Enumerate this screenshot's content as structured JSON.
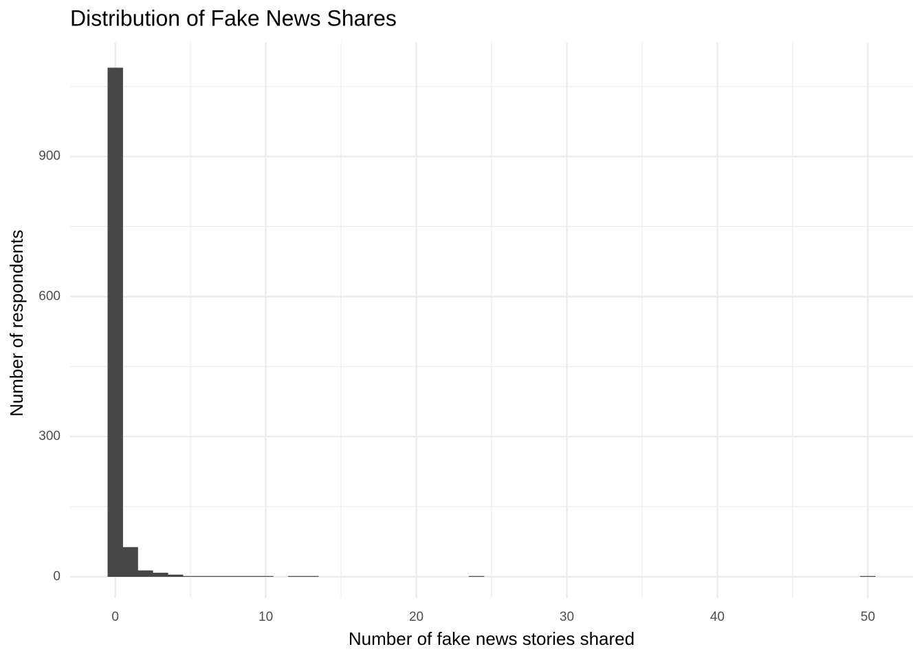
{
  "chart_data": {
    "type": "histogram",
    "title": "Distribution of Fake News Shares",
    "x_label": "Number of fake news stories shared",
    "y_label": "Number of respondents",
    "bins": [
      -0.5,
      0.5,
      1.5,
      2.5,
      3.5,
      4.5,
      5.5,
      6.5,
      7.5,
      8.5,
      9.5,
      10.5,
      11.5,
      12.5,
      13.5,
      14.5,
      15.5,
      16.5,
      17.5,
      18.5,
      19.5,
      20.5,
      21.5,
      22.5,
      23.5,
      24.5,
      25.5,
      26.5,
      27.5,
      28.5,
      29.5,
      30.5,
      31.5,
      32.5,
      33.5,
      34.5,
      35.5,
      36.5,
      37.5,
      38.5,
      39.5,
      40.5,
      41.5,
      42.5,
      43.5,
      44.5,
      45.5,
      46.5,
      47.5,
      48.5,
      49.5,
      50.5
    ],
    "values": [
      1090,
      63,
      13,
      8,
      4,
      1,
      1,
      1,
      1,
      1,
      1,
      0,
      1,
      1,
      0,
      0,
      0,
      0,
      0,
      0,
      0,
      0,
      0,
      0,
      1,
      0,
      0,
      0,
      0,
      0,
      0,
      0,
      0,
      0,
      0,
      0,
      0,
      0,
      0,
      0,
      0,
      0,
      0,
      0,
      0,
      0,
      0,
      0,
      0,
      0,
      1
    ],
    "color": "#474747",
    "xlim": [
      -3,
      53
    ],
    "ylim": [
      -46,
      1144
    ],
    "xticks": [
      0,
      10,
      20,
      30,
      40,
      50
    ],
    "yticks": [
      0,
      300,
      600,
      900
    ],
    "x_minor_ticks": [
      5,
      15,
      25,
      35,
      45
    ],
    "y_minor_ticks": [
      150,
      450,
      750,
      1050
    ],
    "grid": true
  }
}
